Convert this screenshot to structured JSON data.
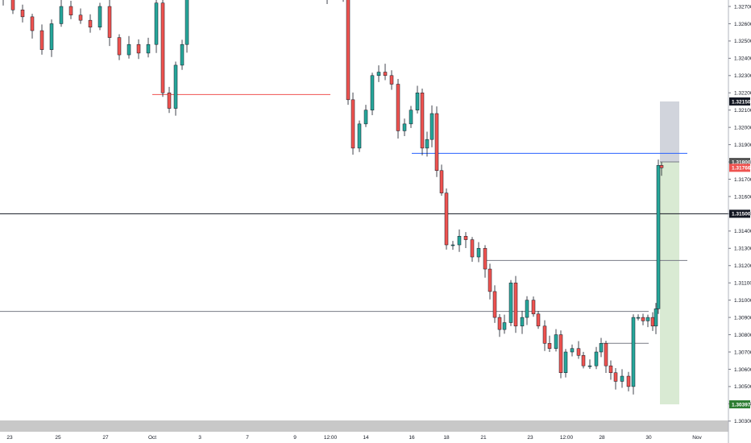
{
  "chart_data": {
    "type": "candlestick",
    "instrument_note": "",
    "price_axis": {
      "range": [
        1.3,
        1.328
      ],
      "tick_step": 0.0001,
      "ticks": [
        "1.32700",
        "1.32600",
        "1.32500",
        "1.32400",
        "1.32300",
        "1.32200",
        "1.32100",
        "1.32000",
        "1.31900",
        "1.31800",
        "1.31700",
        "1.31600",
        "1.31500",
        "1.31400",
        "1.31300",
        "1.31200",
        "1.31100",
        "1.31000",
        "1.30900",
        "1.30800",
        "1.30700",
        "1.30600",
        "1.30500",
        "1.30400",
        "1.30300"
      ]
    },
    "time_axis": {
      "labels": [
        "23",
        "25",
        "27",
        "Oct",
        "3",
        "7",
        "9",
        "12:00",
        "14",
        "16",
        "18",
        "21",
        "23",
        "12:00",
        "28",
        "30",
        "Nov"
      ]
    },
    "price_badges": [
      {
        "text": "1.32150",
        "value": 1.3215,
        "bg": "#131722",
        "fg": "#ffffff"
      },
      {
        "text": "1.31800",
        "value": 1.318,
        "bg": "#555555",
        "fg": "#ffffff"
      },
      {
        "text": "1.31766",
        "value": 1.31766,
        "bg": "#ef5350",
        "fg": "#ffffff"
      },
      {
        "text": "1.31500",
        "value": 1.315,
        "bg": "#131722",
        "fg": "#ffffff"
      },
      {
        "text": "1.30397",
        "value": 1.30397,
        "bg": "#2e7d32",
        "fg": "#ffffff"
      }
    ],
    "horizontal_lines": [
      {
        "value": 1.3219,
        "color": "#ef5350",
        "x_range": [
          "Oct",
          "12:00"
        ]
      },
      {
        "value": 1.3185,
        "color": "#2962ff",
        "x_range": [
          "16",
          "Nov"
        ]
      },
      {
        "value": 1.315,
        "color": "#131722",
        "x_range": [
          "23",
          "Nov"
        ]
      },
      {
        "value": 1.3123,
        "color": "#787b86",
        "x_range": [
          "21",
          "Nov"
        ]
      },
      {
        "value": 1.30935,
        "color": "#787b86",
        "x_range": [
          "23",
          "30"
        ]
      },
      {
        "value": 1.3075,
        "color": "#787b86",
        "x_range": [
          "28",
          "30"
        ]
      }
    ],
    "position_tool": {
      "entry": 1.318,
      "stop": 1.3215,
      "target": 1.30397,
      "stop_zone_color": "#d1d4dc",
      "target_zone_color": "#d9ead3"
    },
    "colors": {
      "up": "#26a69a",
      "down": "#ef5350",
      "wick": "#131722"
    },
    "last_price": 1.31766
  }
}
